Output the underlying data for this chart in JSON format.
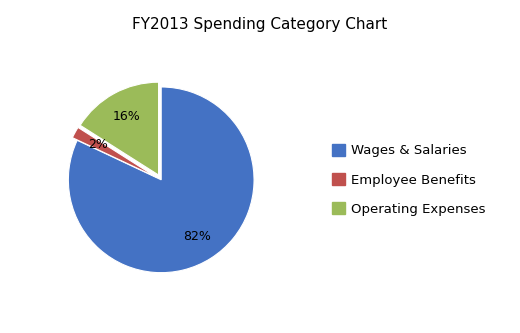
{
  "title": "FY2013 Spending Category Chart",
  "labels": [
    "Wages & Salaries",
    "Employee Benefits",
    "Operating Expenses"
  ],
  "values": [
    82,
    2,
    16
  ],
  "colors": [
    "#4472C4",
    "#C0504D",
    "#9BBB59"
  ],
  "explode": [
    0.0,
    0.05,
    0.05
  ],
  "title_fontsize": 11,
  "legend_fontsize": 9.5,
  "background_color": "#FFFFFF",
  "startangle": 90
}
